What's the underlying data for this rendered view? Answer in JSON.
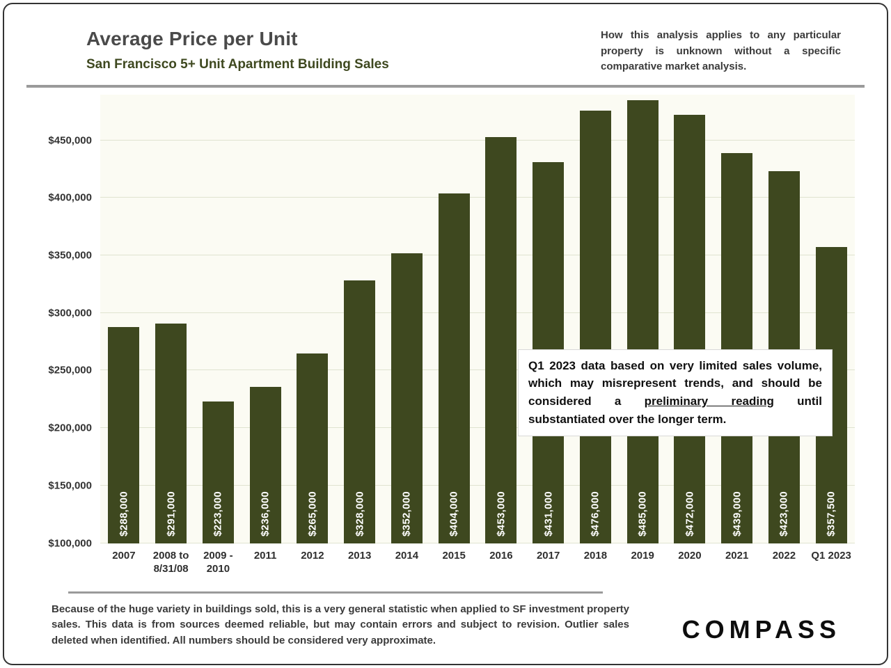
{
  "header": {
    "title": "Average Price per Unit",
    "subtitle": "San Francisco 5+ Unit Apartment Building Sales",
    "disclaimer": "How this analysis applies to any particular property is unknown without a specific comparative market analysis."
  },
  "chart_data": {
    "type": "bar",
    "title": "Average Price per Unit - San Francisco 5+ Unit Apartment Building Sales",
    "categories": [
      "2007",
      "2008 to\n8/31/08",
      "2009 -\n2010",
      "2011",
      "2012",
      "2013",
      "2014",
      "2015",
      "2016",
      "2017",
      "2018",
      "2019",
      "2020",
      "2021",
      "2022",
      "Q1 2023"
    ],
    "values": [
      288000,
      291000,
      223000,
      236000,
      265000,
      328000,
      352000,
      404000,
      453000,
      431000,
      476000,
      485000,
      472000,
      439000,
      423000,
      357500
    ],
    "value_labels": [
      "$288,000",
      "$291,000",
      "$223,000",
      "$236,000",
      "$265,000",
      "$328,000",
      "$352,000",
      "$404,000",
      "$453,000",
      "$431,000",
      "$476,000",
      "$485,000",
      "$472,000",
      "$439,000",
      "$423,000",
      "$357,500"
    ],
    "xlabel": "",
    "ylabel": "",
    "ylim": [
      100000,
      490000
    ],
    "yticks": [
      {
        "value": 100000,
        "label": "$100,000"
      },
      {
        "value": 150000,
        "label": "$150,000"
      },
      {
        "value": 200000,
        "label": "$200,000"
      },
      {
        "value": 250000,
        "label": "$250,000"
      },
      {
        "value": 300000,
        "label": "$300,000"
      },
      {
        "value": 350000,
        "label": "$350,000"
      },
      {
        "value": 400000,
        "label": "$400,000"
      },
      {
        "value": 450000,
        "label": "$450,000"
      }
    ],
    "grid": true,
    "legend": "none",
    "bar_color": "#3e481f",
    "plot_background": "#fbfbf3"
  },
  "annotation": {
    "pre": "Q1 2023 data based on very limited sales volume, which may misrepresent trends, and should be considered a ",
    "underline": "preliminary reading",
    "post": " until substantiated over the longer term."
  },
  "footer": {
    "note": "Because of the huge variety in buildings sold, this is a very general statistic when applied to SF investment property sales. This data is from sources deemed reliable, but may contain errors and subject to revision. Outlier sales deleted when identified. All numbers should be considered very approximate.",
    "logo": "COMPASS"
  }
}
